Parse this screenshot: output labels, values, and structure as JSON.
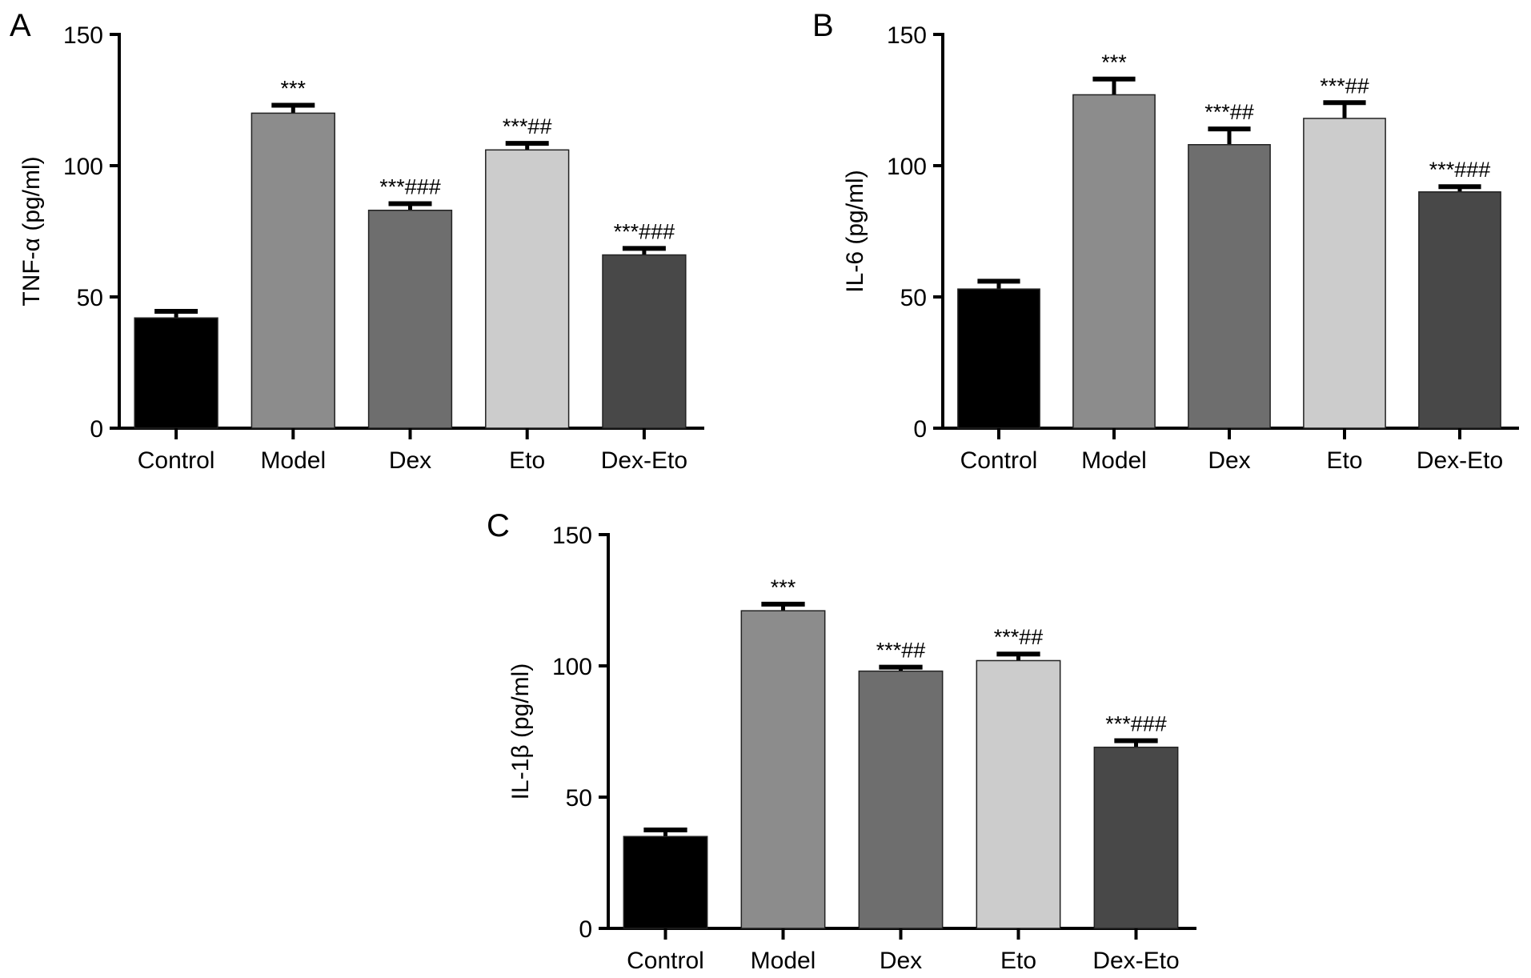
{
  "chart_data": [
    {
      "type": "bar",
      "panel_label": "A",
      "ylabel": "TNF-α (pg/ml)",
      "ylim": [
        0,
        150
      ],
      "yticks": [
        0,
        50,
        100,
        150
      ],
      "categories": [
        "Control",
        "Model",
        "Dex",
        "Eto",
        "Dex-Eto"
      ],
      "values": [
        42,
        120,
        83,
        106,
        66
      ],
      "errors": [
        2.5,
        3,
        2.5,
        2.5,
        2.5
      ],
      "annotations": [
        "",
        "***",
        "***###",
        "***##",
        "***###"
      ],
      "colors": [
        "#000000",
        "#8c8c8c",
        "#6e6e6e",
        "#cccccc",
        "#484848"
      ],
      "grid": false
    },
    {
      "type": "bar",
      "panel_label": "B",
      "ylabel": "IL-6 (pg/ml)",
      "ylim": [
        0,
        150
      ],
      "yticks": [
        0,
        50,
        100,
        150
      ],
      "categories": [
        "Control",
        "Model",
        "Dex",
        "Eto",
        "Dex-Eto"
      ],
      "values": [
        53,
        127,
        108,
        118,
        90
      ],
      "errors": [
        3,
        6,
        6,
        6,
        2
      ],
      "annotations": [
        "",
        "***",
        "***##",
        "***##",
        "***###"
      ],
      "colors": [
        "#000000",
        "#8c8c8c",
        "#6e6e6e",
        "#cccccc",
        "#484848"
      ],
      "grid": false
    },
    {
      "type": "bar",
      "panel_label": "C",
      "ylabel": "IL-1β (pg/ml)",
      "ylim": [
        0,
        150
      ],
      "yticks": [
        0,
        50,
        100,
        150
      ],
      "categories": [
        "Control",
        "Model",
        "Dex",
        "Eto",
        "Dex-Eto"
      ],
      "values": [
        35,
        121,
        98,
        102,
        69
      ],
      "errors": [
        2.5,
        2.5,
        1.5,
        2.5,
        2.5
      ],
      "annotations": [
        "",
        "***",
        "***##",
        "***##",
        "***###"
      ],
      "colors": [
        "#000000",
        "#8c8c8c",
        "#6e6e6e",
        "#cccccc",
        "#484848"
      ],
      "grid": false
    }
  ]
}
